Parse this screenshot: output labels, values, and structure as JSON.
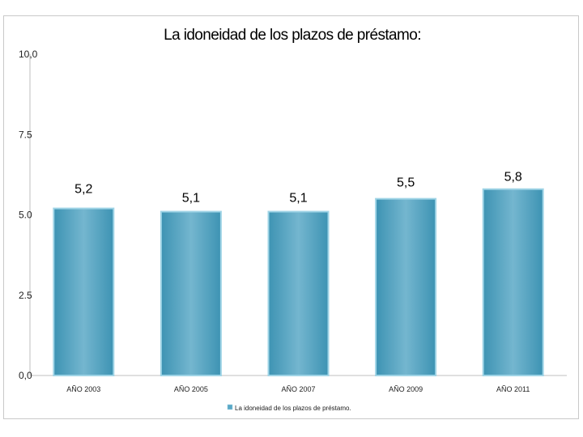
{
  "chart_data": {
    "type": "bar",
    "title": "La idoneidad de los plazos de préstamo:",
    "categories": [
      "AÑO 2003",
      "AÑO 2005",
      "AÑO 2007",
      "AÑO 2009",
      "AÑO 2011"
    ],
    "series": [
      {
        "name": "La idoneidad de los plazos de préstamo.",
        "values": [
          5.2,
          5.1,
          5.1,
          5.5,
          5.8
        ],
        "value_labels": [
          "5,2",
          "5,1",
          "5,1",
          "5,5",
          "5,8"
        ]
      }
    ],
    "yticks": [
      "0,0",
      "2.5",
      "5.0",
      "7.5",
      "10,0"
    ],
    "ylim": [
      0,
      10
    ],
    "xlabel": "",
    "ylabel": "",
    "grid": false,
    "legend_position": "bottom",
    "colors": {
      "bar_fill_center": "#74b6cf",
      "bar_fill_edge": "#3d93b3",
      "bar_stroke": "#9fd4e6",
      "axis": "#bfbfbf"
    }
  }
}
